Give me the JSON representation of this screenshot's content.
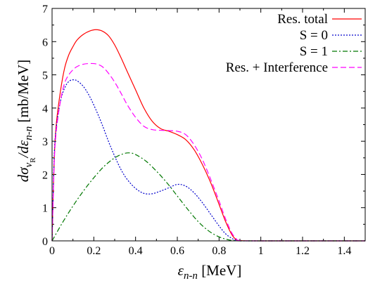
{
  "chart_data": {
    "type": "line",
    "xlim": [
      0,
      1.5
    ],
    "ylim": [
      0,
      7
    ],
    "x_ticks": [
      "0",
      "0.2",
      "0.4",
      "0.6",
      "0.8",
      "1",
      "1.2",
      "1.4"
    ],
    "y_ticks": [
      "0",
      "1",
      "2",
      "3",
      "4",
      "5",
      "6",
      "7"
    ],
    "xlabel": {
      "sym": "ε",
      "sub": "n-n",
      "unit": " [MeV]"
    },
    "ylabel": {
      "d1": "dσ",
      "sub_nu": "ν",
      "sub_R": "R",
      "mid": "/dε",
      "sub_nn": "n-n",
      "unit": " [mb/MeV]"
    },
    "legend_position": "top-right",
    "series": [
      {
        "name": "Res. total",
        "color": "#ff0000",
        "dash": "",
        "x": [
          0,
          0.01,
          0.02,
          0.04,
          0.06,
          0.08,
          0.1,
          0.12,
          0.15,
          0.18,
          0.21,
          0.24,
          0.27,
          0.3,
          0.33,
          0.36,
          0.4,
          0.44,
          0.48,
          0.52,
          0.56,
          0.6,
          0.64,
          0.68,
          0.72,
          0.76,
          0.8,
          0.83,
          0.86,
          0.88,
          0.9,
          1.0,
          1.5
        ],
        "y": [
          0,
          2.4,
          3.5,
          4.5,
          5.2,
          5.6,
          5.85,
          6.05,
          6.22,
          6.32,
          6.36,
          6.32,
          6.18,
          5.9,
          5.52,
          5.1,
          4.55,
          4.0,
          3.6,
          3.38,
          3.3,
          3.2,
          3.05,
          2.75,
          2.3,
          1.75,
          1.1,
          0.6,
          0.2,
          0.05,
          0.01,
          0,
          0
        ]
      },
      {
        "name": "S = 0",
        "color": "#0000cc",
        "dash": "2,2",
        "x": [
          0,
          0.01,
          0.02,
          0.04,
          0.06,
          0.08,
          0.1,
          0.12,
          0.15,
          0.18,
          0.21,
          0.24,
          0.27,
          0.3,
          0.33,
          0.36,
          0.4,
          0.44,
          0.48,
          0.52,
          0.56,
          0.6,
          0.64,
          0.68,
          0.72,
          0.76,
          0.8,
          0.83,
          0.86,
          0.88,
          0.9,
          1.0,
          1.5
        ],
        "y": [
          0,
          2.5,
          3.4,
          4.2,
          4.6,
          4.8,
          4.85,
          4.82,
          4.65,
          4.35,
          3.95,
          3.5,
          3.0,
          2.55,
          2.15,
          1.85,
          1.58,
          1.43,
          1.42,
          1.5,
          1.6,
          1.7,
          1.65,
          1.45,
          1.15,
          0.8,
          0.45,
          0.22,
          0.08,
          0.02,
          0,
          0,
          0
        ]
      },
      {
        "name": "S = 1",
        "color": "#007700",
        "dash": "7,3,2,3",
        "x": [
          0,
          0.05,
          0.1,
          0.15,
          0.2,
          0.25,
          0.3,
          0.34,
          0.37,
          0.4,
          0.45,
          0.5,
          0.55,
          0.6,
          0.65,
          0.7,
          0.75,
          0.8,
          0.84,
          0.87,
          0.9,
          1.0,
          1.5
        ],
        "y": [
          0,
          0.55,
          1.05,
          1.5,
          1.9,
          2.25,
          2.5,
          2.62,
          2.65,
          2.6,
          2.4,
          2.1,
          1.75,
          1.35,
          0.95,
          0.58,
          0.3,
          0.12,
          0.04,
          0.01,
          0,
          0,
          0
        ]
      },
      {
        "name": "Res. + Interference",
        "color": "#ff00ff",
        "dash": "8,4",
        "x": [
          0,
          0.01,
          0.02,
          0.04,
          0.06,
          0.08,
          0.1,
          0.12,
          0.15,
          0.18,
          0.21,
          0.24,
          0.27,
          0.3,
          0.33,
          0.36,
          0.4,
          0.44,
          0.48,
          0.52,
          0.56,
          0.6,
          0.64,
          0.68,
          0.72,
          0.76,
          0.8,
          0.83,
          0.86,
          0.88,
          0.9,
          1.0,
          1.5
        ],
        "y": [
          0,
          2.3,
          3.3,
          4.2,
          4.75,
          5.0,
          5.15,
          5.25,
          5.32,
          5.34,
          5.33,
          5.25,
          5.05,
          4.78,
          4.45,
          4.1,
          3.72,
          3.45,
          3.35,
          3.33,
          3.32,
          3.3,
          3.2,
          2.9,
          2.45,
          1.85,
          1.2,
          0.68,
          0.25,
          0.08,
          0.01,
          0,
          0
        ]
      }
    ]
  }
}
